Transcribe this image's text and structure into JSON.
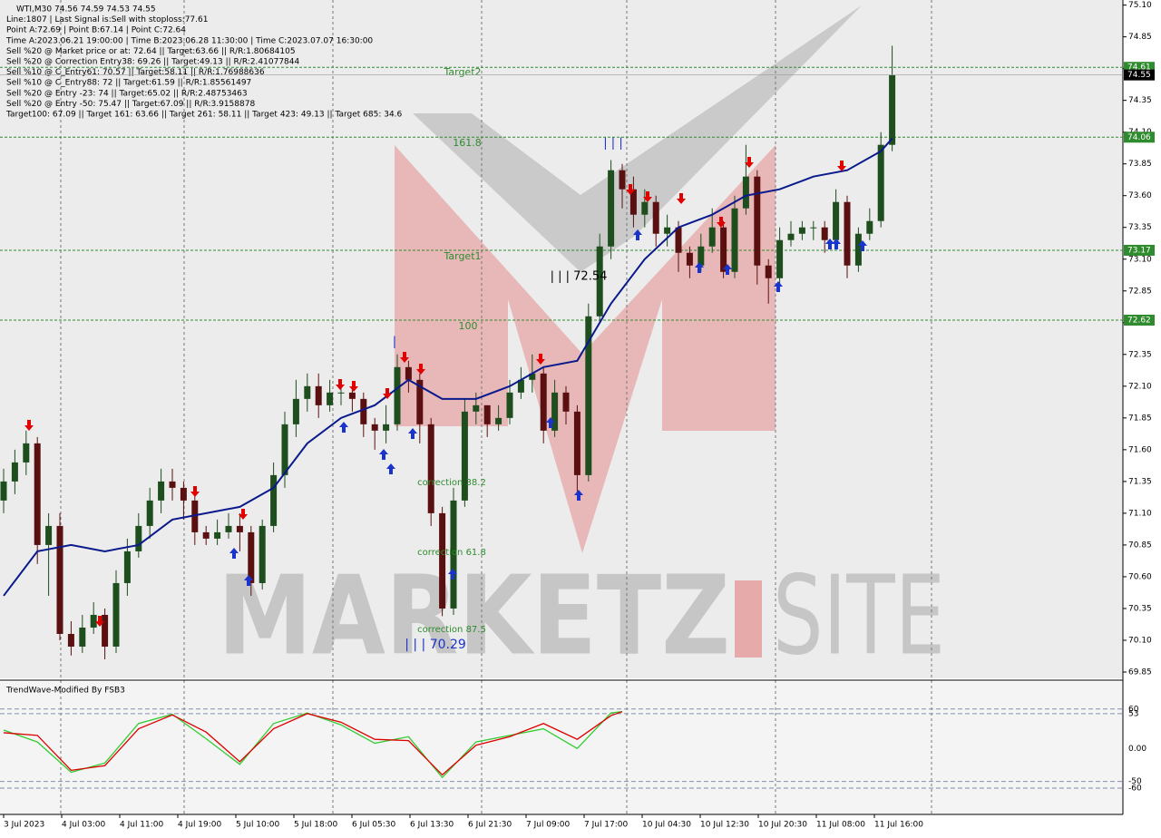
{
  "chart_data": [
    {
      "type": "candlestick",
      "info_lines": [
        "WTI,M30  74.56 74.59 74.53 74.55",
        "Line:1807 | Last Signal is:Sell with stoploss:77.61",
        "Point A:72.69 | Point B:67.14 | Point C:72.64",
        "Time A:2023.06.21 19:00:00 | Time B:2023.06.28 11:30:00 | Time C:2023.07.07 16:30:00",
        "Sell %20 @ Market price or at: 72.64 || Target:63.66 || R/R:1.80684105",
        "Sell %20 @ Correction Entry38: 69.26 || Target:49.13 || R/R:2.41077844",
        "Sell %10 @ C_Entry61: 70.57 || Target:58.11 || R/R:1.76988636",
        "Sell %10 @ C_Entry88: 72 || Target:61.59 || R/R:1.85561497",
        "Sell %20 @ Entry -23: 74 || Target:65.02 || R/R:2.48753463",
        "Sell %20 @ Entry -50: 75.47 || Target:67.09 || R/R:3.9158878",
        "Target100: 67.09 || Target 161: 63.66 || Target 261: 58.11 || Target 423: 49.13 || Target 685: 34.6"
      ],
      "open": [
        71.2,
        71.35,
        71.5,
        71.65,
        70.85,
        71,
        70.15,
        70.05,
        70.2,
        70.3,
        70.05,
        70.55,
        70.8,
        71,
        71.2,
        71.35,
        71.3,
        71.2,
        70.95,
        70.9,
        70.95,
        71,
        70.95,
        70.55,
        71,
        71.4,
        71.8,
        72,
        72.1,
        71.95,
        72.05,
        72.05,
        72,
        71.8,
        71.75,
        71.8,
        72.25,
        72.15,
        71.8,
        71.1,
        70.35,
        71.2,
        71.9,
        71.95,
        71.8,
        71.85,
        72.05,
        72.15,
        72.2,
        71.75,
        72.05,
        71.9,
        71.4,
        72.65,
        73.2,
        73.8,
        73.65,
        73.45,
        73.55,
        73.3,
        73.35,
        73.15,
        73.05,
        73.2,
        73.35,
        73,
        73.5,
        73.75,
        73.05,
        72.95,
        73.25,
        73.3,
        73.35,
        73.35,
        73.25,
        73.55,
        73.05,
        73.3,
        73.4,
        74
      ],
      "high": [
        71.45,
        71.6,
        71.75,
        71.7,
        71.1,
        71.1,
        70.25,
        70.3,
        70.4,
        70.35,
        70.65,
        70.9,
        71.1,
        71.3,
        71.45,
        71.45,
        71.35,
        71.25,
        71,
        71.05,
        71.1,
        71.1,
        71,
        71.05,
        71.5,
        71.9,
        72.15,
        72.2,
        72.2,
        72.15,
        72.15,
        72.1,
        72.05,
        71.85,
        71.95,
        72.35,
        72.3,
        72.2,
        71.85,
        71.15,
        71.3,
        72,
        72.05,
        71.95,
        71.95,
        72.15,
        72.25,
        72.35,
        72.25,
        72.15,
        72.1,
        71.95,
        72.75,
        73.3,
        73.88,
        73.85,
        73.75,
        73.65,
        73.6,
        73.45,
        73.4,
        73.2,
        73.3,
        73.5,
        73.4,
        73.6,
        74,
        73.8,
        73.1,
        73.35,
        73.4,
        73.4,
        73.4,
        73.4,
        73.65,
        73.6,
        73.35,
        73.5,
        74.1,
        74.78
      ],
      "low": [
        71.1,
        71.25,
        71.4,
        70.7,
        70.45,
        70.1,
        69.98,
        70,
        70.15,
        69.95,
        70,
        70.45,
        70.75,
        70.9,
        71.1,
        71.2,
        71.05,
        70.85,
        70.85,
        70.85,
        70.9,
        70.8,
        70.45,
        70.5,
        70.95,
        71.3,
        71.7,
        71.9,
        71.85,
        71.9,
        71.95,
        71.9,
        71.7,
        71.6,
        71.65,
        71.75,
        72.05,
        71.65,
        71,
        70.29,
        70.3,
        71.15,
        71.8,
        71.7,
        71.75,
        71.8,
        72,
        72.05,
        71.65,
        71.7,
        71.8,
        71.25,
        71.35,
        72.6,
        73.1,
        73.5,
        73.35,
        73.35,
        73.2,
        73.2,
        73,
        72.95,
        73,
        73.15,
        72.95,
        72.95,
        73.45,
        72.9,
        72.75,
        72.9,
        73.2,
        73.25,
        73.25,
        73.15,
        73.2,
        72.95,
        73,
        73.25,
        73.35,
        73.95
      ],
      "close": [
        71.35,
        71.5,
        71.65,
        70.85,
        71,
        70.15,
        70.05,
        70.2,
        70.3,
        70.05,
        70.55,
        70.8,
        71,
        71.2,
        71.35,
        71.3,
        71.2,
        70.95,
        70.9,
        70.95,
        71,
        70.95,
        70.55,
        71,
        71.4,
        71.8,
        72,
        72.1,
        71.95,
        72.05,
        72.05,
        72,
        71.8,
        71.75,
        71.8,
        72.25,
        72.15,
        71.8,
        71.1,
        70.35,
        71.2,
        71.9,
        71.95,
        71.8,
        71.85,
        72.05,
        72.15,
        72.2,
        71.75,
        72.05,
        71.9,
        71.4,
        72.65,
        73.2,
        73.8,
        73.65,
        73.45,
        73.55,
        73.3,
        73.35,
        73.15,
        73.05,
        73.2,
        73.35,
        73,
        73.5,
        73.75,
        73.05,
        72.95,
        73.25,
        73.3,
        73.35,
        73.35,
        73.25,
        73.55,
        73.05,
        73.3,
        73.4,
        74,
        74.55
      ],
      "up_color": "#1e4d1e",
      "down_color": "#5a1010",
      "ma": {
        "color": "#0a1a8c",
        "x": [
          0,
          3,
          6,
          9,
          12,
          15,
          18,
          21,
          24,
          27,
          30,
          33,
          36,
          39,
          42,
          45,
          48,
          51,
          54,
          57,
          60,
          63,
          66,
          69,
          72,
          75,
          78,
          79
        ],
        "values": [
          70.45,
          70.8,
          70.85,
          70.8,
          70.85,
          71.05,
          71.1,
          71.15,
          71.3,
          71.65,
          71.85,
          71.95,
          72.15,
          72,
          72,
          72.1,
          72.25,
          72.3,
          72.75,
          73.1,
          73.35,
          73.45,
          73.6,
          73.65,
          73.75,
          73.8,
          73.95,
          74.05
        ]
      },
      "levels": [
        {
          "name": "Target2",
          "value": 74.61
        },
        {
          "name": "161.8",
          "value": 74.06
        },
        {
          "name": "Target1",
          "value": 73.17
        },
        {
          "name": "100",
          "value": 72.62
        }
      ],
      "level_color": "#2e8b2e",
      "current_price": 74.55,
      "annotations": [
        "correction 38.2",
        "correction 61.8",
        "correction 87.5",
        "| | | 70.29",
        "| | | 72.54",
        "| | |",
        "|"
      ],
      "watermark_left": "MARKETZ",
      "watermark_right": "SITE",
      "ylim": [
        69.8,
        75.14
      ],
      "yticks": [
        69.85,
        {
          "value": 70.1,
          "label": "70.10"
        },
        70.35,
        {
          "value": 70.6,
          "label": "70.60"
        },
        70.85,
        {
          "value": 71.1,
          "label": "71.10"
        },
        71.35,
        {
          "value": 71.6,
          "label": "71.60"
        },
        71.85,
        {
          "value": 72.1,
          "label": "72.10"
        },
        72.35,
        {
          "value": 72.6,
          "label": "72.60"
        },
        72.85,
        {
          "value": 73.1,
          "label": "73.10"
        },
        73.35,
        {
          "value": 73.6,
          "label": "73.60"
        },
        73.85,
        {
          "value": 74.1,
          "label": "74.10"
        },
        74.35,
        {
          "value": 74.6,
          "label": "74.60"
        },
        74.85,
        {
          "value": 75.1,
          "label": "75.10"
        }
      ],
      "time_labels": [
        "3 Jul 2023",
        "4 Jul 03:00",
        "4 Jul 11:00",
        "4 Jul 19:00",
        "5 Jul 10:00",
        "5 Jul 18:00",
        "6 Jul 05:30",
        "6 Jul 13:30",
        "6 Jul 21:30",
        "7 Jul 09:00",
        "7 Jul 17:00",
        "10 Jul 04:30",
        "10 Jul 12:30",
        "10 Jul 20:30",
        "11 Jul 08:00",
        "11 Jul 16:00"
      ]
    },
    {
      "type": "line",
      "title": "TrendWave-Modified By FSB3",
      "x": [
        0,
        3,
        6,
        9,
        12,
        15,
        18,
        21,
        24,
        27,
        30,
        33,
        36,
        39,
        42,
        45,
        48,
        51,
        54,
        55
      ],
      "series": [
        {
          "color": "#33cc33",
          "values": [
            28,
            10,
            -36,
            -22,
            38,
            52,
            15,
            -24,
            38,
            54,
            36,
            8,
            18,
            -44,
            10,
            20,
            30,
            0,
            54,
            56
          ]
        },
        {
          "color": "#dd0000",
          "values": [
            24,
            20,
            -33,
            -26,
            30,
            51,
            25,
            -20,
            30,
            53,
            40,
            14,
            12,
            -40,
            5,
            18,
            38,
            14,
            50,
            56
          ]
        }
      ],
      "ylim": [
        -100,
        101
      ],
      "yticks": [
        60,
        53,
        {
          "value": 0,
          "label": "0.00"
        },
        -50,
        -60
      ]
    }
  ]
}
